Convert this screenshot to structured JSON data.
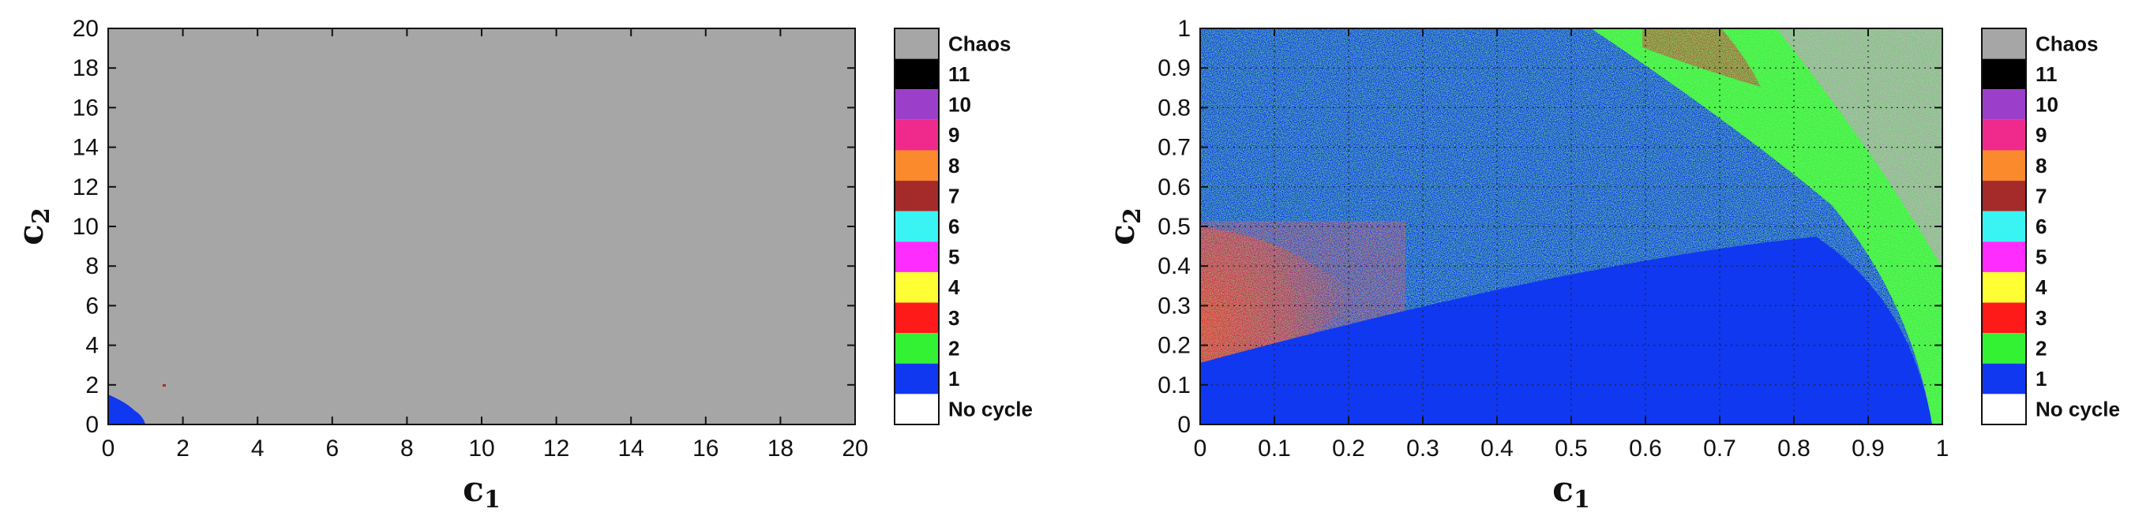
{
  "chart_data": [
    {
      "type": "heatmap",
      "xlabel": "c",
      "xlabel_subscript": "1",
      "ylabel": "c",
      "ylabel_subscript": "2",
      "xlim": [
        0,
        20
      ],
      "ylim": [
        0,
        20
      ],
      "xticks": [
        0,
        2,
        4,
        6,
        8,
        10,
        12,
        14,
        16,
        18,
        20
      ],
      "yticks": [
        0,
        2,
        4,
        6,
        8,
        10,
        12,
        14,
        16,
        18,
        20
      ],
      "xtick_labels": [
        "0",
        "2",
        "4",
        "6",
        "8",
        "10",
        "12",
        "14",
        "16",
        "18",
        "20"
      ],
      "ytick_labels": [
        "0",
        "2",
        "4",
        "6",
        "8",
        "10",
        "12",
        "14",
        "16",
        "18",
        "20"
      ],
      "grid": false,
      "background_class": "Chaos",
      "regions": [
        {
          "class": "1",
          "description_region": "quarter-disc near origin",
          "c1_max": 1.0,
          "c2_max": 1.8
        }
      ]
    },
    {
      "type": "heatmap",
      "xlabel": "c",
      "xlabel_subscript": "1",
      "ylabel": "c",
      "ylabel_subscript": "2",
      "xlim": [
        0,
        1
      ],
      "ylim": [
        0,
        1
      ],
      "xticks": [
        0,
        0.1,
        0.2,
        0.3,
        0.4,
        0.5,
        0.6,
        0.7,
        0.8,
        0.9,
        1
      ],
      "yticks": [
        0,
        0.1,
        0.2,
        0.3,
        0.4,
        0.5,
        0.6,
        0.7,
        0.8,
        0.9,
        1
      ],
      "xtick_labels": [
        "0",
        "0.1",
        "0.2",
        "0.3",
        "0.4",
        "0.5",
        "0.6",
        "0.7",
        "0.8",
        "0.9",
        "1"
      ],
      "ytick_labels": [
        "0",
        "0.1",
        "0.2",
        "0.3",
        "0.4",
        "0.5",
        "0.6",
        "0.7",
        "0.8",
        "0.9",
        "1"
      ],
      "grid": true,
      "background_class": "Chaos",
      "regions": [
        {
          "class": "1",
          "c1_max": 0.985,
          "c2_max": 1.0
        },
        {
          "class": "3",
          "c1_max": 0.18,
          "c2_max": 0.5
        },
        {
          "class": "2",
          "band_c1": [
            0.52,
            0.93
          ],
          "band_c2": [
            0.5,
            1.0
          ]
        }
      ]
    }
  ],
  "legend": {
    "entries": [
      {
        "label": "Chaos",
        "color": "#a6a6a6"
      },
      {
        "label": "11",
        "color": "#000000"
      },
      {
        "label": "10",
        "color": "#9b3fcb"
      },
      {
        "label": "9",
        "color": "#f02a8c"
      },
      {
        "label": "8",
        "color": "#fa8a2c"
      },
      {
        "label": "7",
        "color": "#a52a2a"
      },
      {
        "label": "6",
        "color": "#3af4f4"
      },
      {
        "label": "5",
        "color": "#ff2cff"
      },
      {
        "label": "4",
        "color": "#ffff33"
      },
      {
        "label": "3",
        "color": "#ff1a1a"
      },
      {
        "label": "2",
        "color": "#33f233"
      },
      {
        "label": "1",
        "color": "#1038f0"
      },
      {
        "label": "No cycle",
        "color": "#ffffff"
      }
    ]
  }
}
